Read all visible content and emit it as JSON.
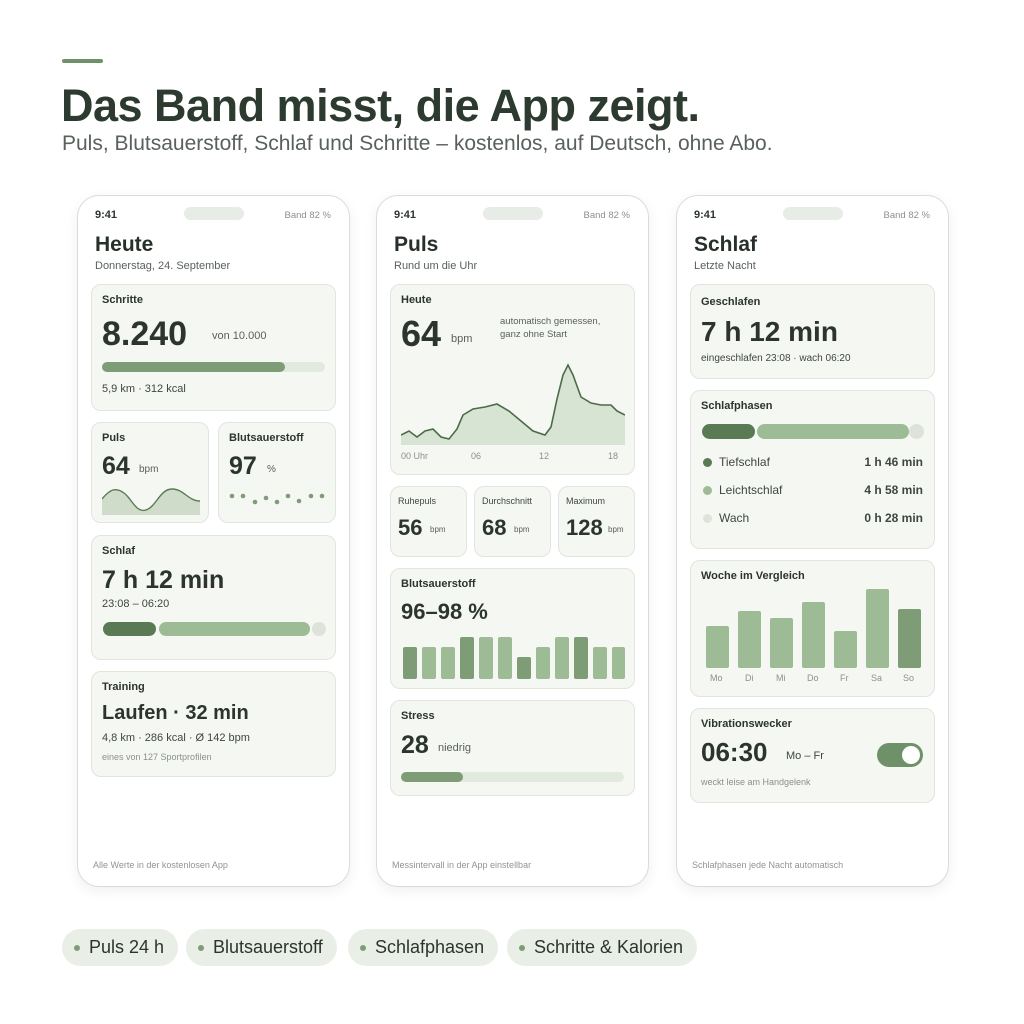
{
  "header": {
    "title": "Das Band misst, die App zeigt.",
    "subtitle": "Puls, Blutsauerstoff, Schlaf und Schritte – kostenlos, auf Deutsch, ohne Abo."
  },
  "status_bar": {
    "time": "9:41",
    "battery": "Band 82 %"
  },
  "colors": {
    "accent": "#6f9169",
    "accent_dark": "#5a7a55",
    "accent_light": "#9dbb95",
    "track": "#e2e9df",
    "card": "#f5f7f3"
  },
  "screen1": {
    "title": "Heute",
    "date": "Donnerstag, 24. September",
    "steps": {
      "label": "Schritte",
      "value": "8.240",
      "goal": "von 10.000",
      "progress": 0.82,
      "detail": "5,9 km  ·  312 kcal"
    },
    "pulse": {
      "label": "Puls",
      "value": "64",
      "unit": "bpm"
    },
    "spo2": {
      "label": "Blutsauerstoff",
      "value": "97",
      "unit": "%"
    },
    "sleep": {
      "label": "Schlaf",
      "value": "7 h 12 min",
      "range": "23:08 – 06:20"
    },
    "training": {
      "label": "Training",
      "value": "Laufen · 32 min",
      "detail": "4,8 km  ·  286 kcal  ·  Ø 142 bpm",
      "note": "eines von 127 Sportprofilen"
    },
    "footer": "Alle Werte in der kostenlosen App"
  },
  "screen2": {
    "title": "Puls",
    "subtitle": "Rund um die Uhr",
    "today": {
      "label": "Heute",
      "value": "64",
      "unit": "bpm",
      "note_line1": "automatisch gemessen,",
      "note_line2": "ganz ohne Start",
      "x_ticks": [
        "00 Uhr",
        "06",
        "12",
        "18"
      ]
    },
    "resting": {
      "label": "Ruhepuls",
      "value": "56",
      "unit": "bpm"
    },
    "average": {
      "label": "Durchschnitt",
      "value": "68",
      "unit": "bpm"
    },
    "maximum": {
      "label": "Maximum",
      "value": "128",
      "unit": "bpm"
    },
    "spo2": {
      "label": "Blutsauerstoff",
      "value": "96–98 %"
    },
    "stress": {
      "label": "Stress",
      "value": "28",
      "unit": "niedrig",
      "progress": 0.28
    },
    "footer": "Messintervall in der App einstellbar"
  },
  "screen3": {
    "title": "Schlaf",
    "subtitle": "Letzte Nacht",
    "slept": {
      "label": "Geschlafen",
      "value": "7 h 12 min",
      "detail": "eingeschlafen 23:08 · wach 06:20"
    },
    "phases": {
      "label": "Schlafphasen",
      "items": [
        {
          "name": "Tiefschlaf",
          "value": "1 h 46 min",
          "color": "#5a7a55"
        },
        {
          "name": "Leichtschlaf",
          "value": "4 h 58 min",
          "color": "#9dbb95"
        },
        {
          "name": "Wach",
          "value": "0 h 28 min",
          "color": "#dde2da"
        }
      ]
    },
    "week": {
      "label": "Woche im Vergleich",
      "days": [
        "Mo",
        "Di",
        "Mi",
        "Do",
        "Fr",
        "Sa",
        "So"
      ]
    },
    "alarm": {
      "label": "Vibrationswecker",
      "time": "06:30",
      "days": "Mo – Fr",
      "note": "weckt leise am Handgelenk",
      "enabled": true
    },
    "footer": "Schlafphasen jede Nacht automatisch"
  },
  "pills": [
    "Puls 24 h",
    "Blutsauerstoff",
    "Schlafphasen",
    "Schritte & Kalorien"
  ]
}
